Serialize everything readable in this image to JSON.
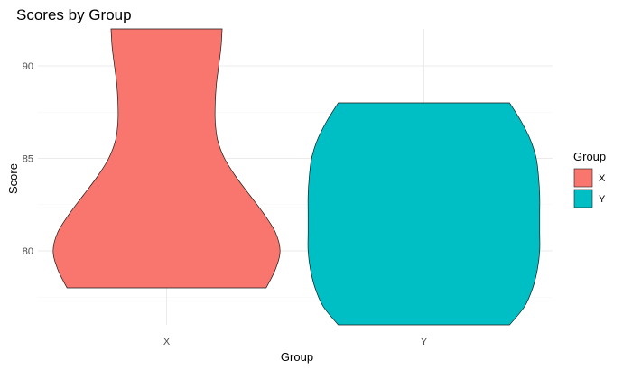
{
  "chart_data": {
    "type": "violin",
    "title": "Scores by Group",
    "xlabel": "Group",
    "ylabel": "Score",
    "categories": [
      "X",
      "Y"
    ],
    "ylim": [
      76,
      92
    ],
    "y_ticks": [
      80,
      85,
      90
    ],
    "grid": true,
    "legend": {
      "title": "Group",
      "placement": "right",
      "entries": [
        {
          "label": "X",
          "color": "#F8766D"
        },
        {
          "label": "Y",
          "color": "#00BFC4"
        }
      ]
    },
    "series": [
      {
        "category": "X",
        "color": "#F8766D",
        "min": 78,
        "max": 92,
        "profile": [
          {
            "y": 78.0,
            "w": 0.86
          },
          {
            "y": 79.0,
            "w": 0.94
          },
          {
            "y": 80.0,
            "w": 0.98
          },
          {
            "y": 81.0,
            "w": 0.94
          },
          {
            "y": 82.0,
            "w": 0.84
          },
          {
            "y": 83.0,
            "w": 0.72
          },
          {
            "y": 84.0,
            "w": 0.6
          },
          {
            "y": 85.0,
            "w": 0.5
          },
          {
            "y": 86.0,
            "w": 0.44
          },
          {
            "y": 87.0,
            "w": 0.42
          },
          {
            "y": 88.0,
            "w": 0.42
          },
          {
            "y": 89.0,
            "w": 0.43
          },
          {
            "y": 90.0,
            "w": 0.45
          },
          {
            "y": 91.0,
            "w": 0.47
          },
          {
            "y": 92.0,
            "w": 0.48
          }
        ]
      },
      {
        "category": "Y",
        "color": "#00BFC4",
        "min": 76,
        "max": 88,
        "profile": [
          {
            "y": 76.0,
            "w": 0.74
          },
          {
            "y": 77.0,
            "w": 0.87
          },
          {
            "y": 78.0,
            "w": 0.94
          },
          {
            "y": 79.0,
            "w": 0.98
          },
          {
            "y": 80.0,
            "w": 1.0
          },
          {
            "y": 81.0,
            "w": 1.0
          },
          {
            "y": 82.0,
            "w": 1.0
          },
          {
            "y": 83.0,
            "w": 1.0
          },
          {
            "y": 84.0,
            "w": 0.99
          },
          {
            "y": 85.0,
            "w": 0.97
          },
          {
            "y": 86.0,
            "w": 0.92
          },
          {
            "y": 87.0,
            "w": 0.84
          },
          {
            "y": 88.0,
            "w": 0.74
          }
        ]
      }
    ]
  }
}
